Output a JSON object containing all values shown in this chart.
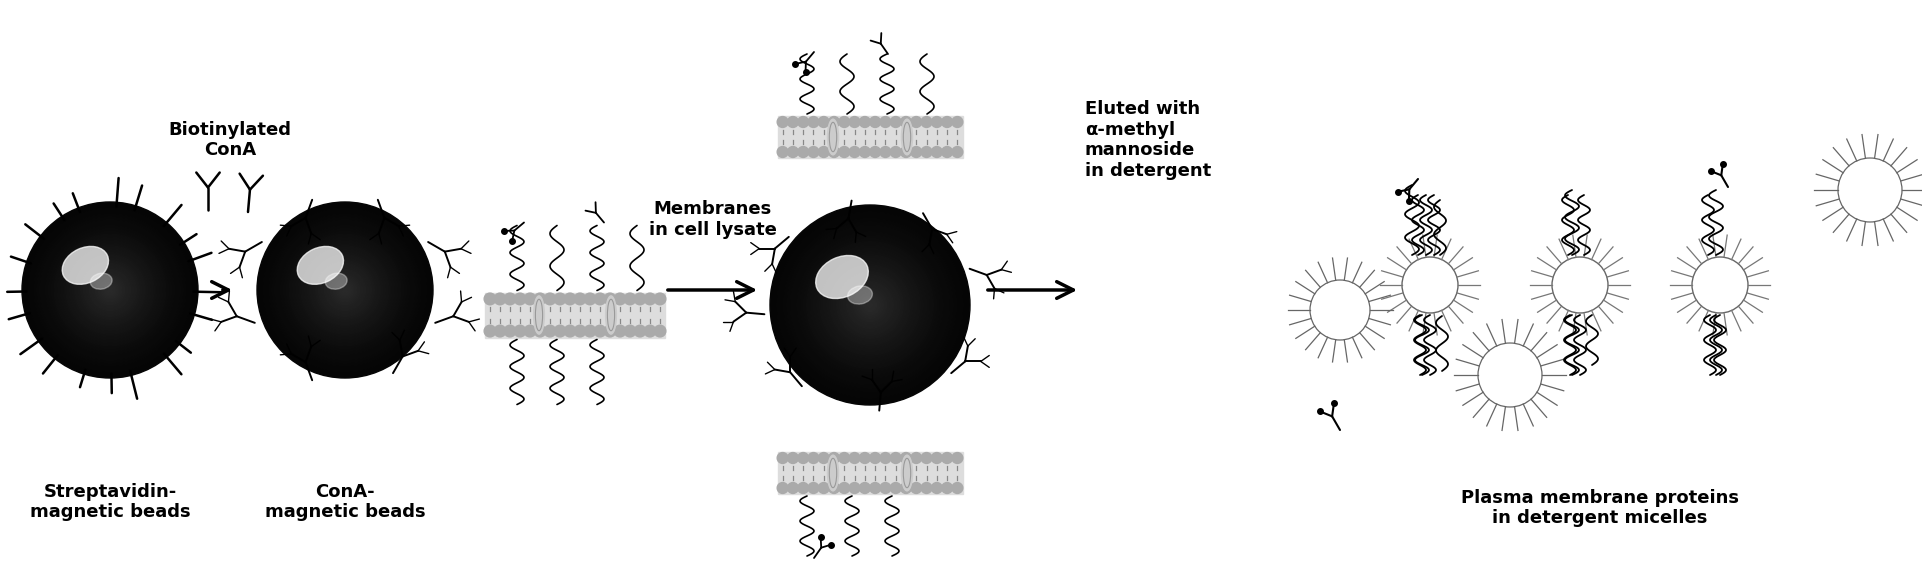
{
  "bg_color": "#ffffff",
  "fig_width": 19.22,
  "fig_height": 5.7,
  "dpi": 100,
  "labels": {
    "streptavidin": "Streptavidin-\nmagnetic beads",
    "cona_beads": "ConA-\nmagnetic beads",
    "biotinylated": "Biotinylated\nConA",
    "membranes": "Membranes\nin cell lysate",
    "eluted": "Eluted with\nα-methyl\nmannoside\nin detergent",
    "plasma": "Plasma membrane proteins\nin detergent micelles"
  }
}
